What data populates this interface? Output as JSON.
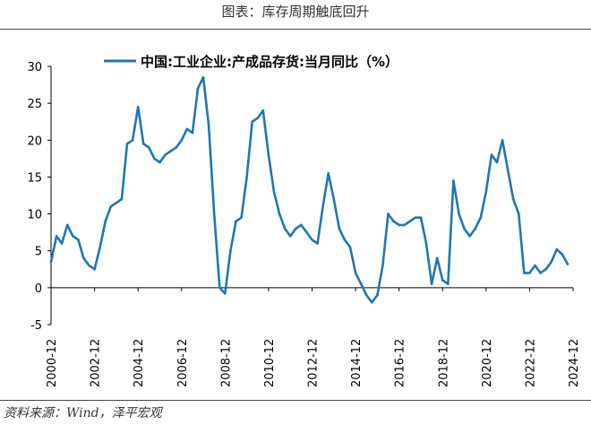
{
  "title": "图表：库存周期触底回升",
  "source": "资料来源：Wind，泽平宏观",
  "chart_data": {
    "type": "line",
    "title": "",
    "xlabel": "",
    "ylabel": "",
    "ylim": [
      -5,
      30
    ],
    "yticks": [
      "30",
      "25",
      "20",
      "15",
      "10",
      "5",
      "0",
      "-5"
    ],
    "xticks": [
      "2000-12",
      "2002-12",
      "2004-12",
      "2006-12",
      "2008-12",
      "2010-12",
      "2012-12",
      "2014-12",
      "2016-12",
      "2018-12",
      "2020-12",
      "2022-12",
      "2024-12"
    ],
    "legend_position": "top",
    "grid": false,
    "series": [
      {
        "name": "中国:工业企业:产成品存货:当月同比（%）",
        "color": "#1f77b4",
        "x": [
          "2000-12",
          "2001-03",
          "2001-06",
          "2001-09",
          "2001-12",
          "2002-03",
          "2002-06",
          "2002-09",
          "2002-12",
          "2003-03",
          "2003-06",
          "2003-09",
          "2003-12",
          "2004-03",
          "2004-06",
          "2004-09",
          "2004-12",
          "2005-03",
          "2005-06",
          "2005-09",
          "2005-12",
          "2006-03",
          "2006-06",
          "2006-09",
          "2006-12",
          "2007-03",
          "2007-06",
          "2007-09",
          "2007-12",
          "2008-03",
          "2008-06",
          "2008-09",
          "2008-12",
          "2009-03",
          "2009-06",
          "2009-09",
          "2009-12",
          "2010-03",
          "2010-06",
          "2010-09",
          "2010-12",
          "2011-03",
          "2011-06",
          "2011-09",
          "2011-12",
          "2012-03",
          "2012-06",
          "2012-09",
          "2012-12",
          "2013-03",
          "2013-06",
          "2013-09",
          "2013-12",
          "2014-03",
          "2014-06",
          "2014-09",
          "2014-12",
          "2015-03",
          "2015-06",
          "2015-09",
          "2015-12",
          "2016-03",
          "2016-06",
          "2016-09",
          "2016-12",
          "2017-03",
          "2017-06",
          "2017-09",
          "2017-12",
          "2018-03",
          "2018-06",
          "2018-09",
          "2018-12",
          "2019-03",
          "2019-06",
          "2019-09",
          "2019-12",
          "2020-03",
          "2020-06",
          "2020-09",
          "2020-12",
          "2021-03",
          "2021-06",
          "2021-09",
          "2021-12",
          "2022-03",
          "2022-06",
          "2022-09",
          "2022-12",
          "2023-03",
          "2023-06",
          "2023-09",
          "2023-12",
          "2024-03",
          "2024-06",
          "2024-09"
        ],
        "values": [
          3.5,
          7,
          6,
          8.5,
          7,
          6.5,
          4,
          3,
          2.5,
          5.5,
          9,
          11,
          11.5,
          12,
          19.5,
          20,
          24.5,
          19.5,
          19,
          17.5,
          17,
          18,
          18.5,
          19,
          20,
          21.5,
          21,
          27,
          28.5,
          22,
          10,
          0,
          -0.8,
          5,
          9,
          9.5,
          15,
          22.5,
          23,
          24,
          18,
          13,
          10,
          8,
          7,
          8,
          8.5,
          7.5,
          6.5,
          6,
          11,
          15.5,
          12,
          8,
          6.5,
          5.5,
          2,
          0.5,
          -1,
          -2,
          -1,
          3,
          10,
          9,
          8.5,
          8.5,
          9,
          9.5,
          9.5,
          6,
          0.5,
          4,
          1,
          0.5,
          14.5,
          10,
          8,
          7,
          8,
          9.5,
          13,
          18,
          17,
          20,
          16,
          12,
          10,
          2,
          2,
          3,
          2,
          2.5,
          3.5,
          5.2,
          4.5,
          3.2
        ]
      }
    ]
  }
}
